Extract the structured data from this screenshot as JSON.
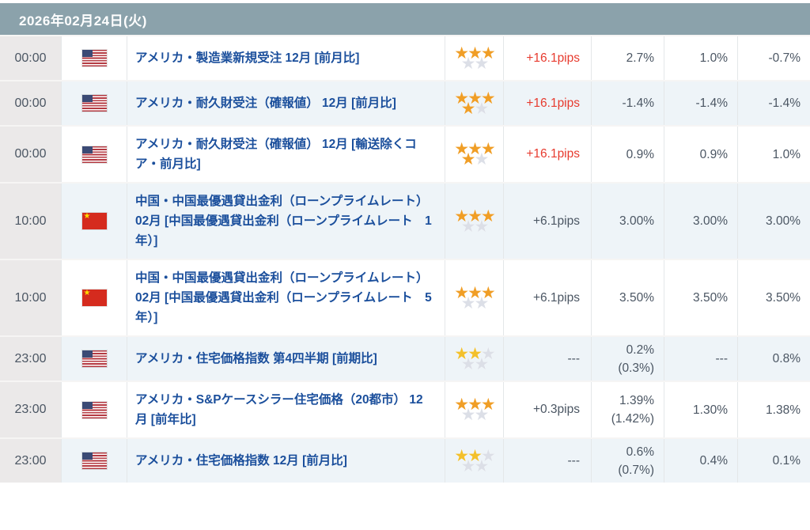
{
  "header": {
    "date_label": "2026年02月24日(火)"
  },
  "colors": {
    "header_bg": "#8ba2ab",
    "event_link": "#1b4f9c",
    "pips_red": "#e73b2f",
    "star_orange": "#f09e26",
    "star_yellow": "#f3c02b",
    "star_gray": "#dcdfe7",
    "row_alt_bg": "#eef4f8",
    "time_col_bg": "#ebe9e9"
  },
  "rows": [
    {
      "time": "00:00",
      "country": "us",
      "country_name": "アメリカ",
      "event": "アメリカ・製造業新規受注 12月 [前月比]",
      "stars": 3,
      "star_color": "orange",
      "pips": "+16.1pips",
      "pips_red": true,
      "values": [
        {
          "main": "2.7%",
          "sub": ""
        },
        {
          "main": "1.0%",
          "sub": ""
        },
        {
          "main": "-0.7%",
          "sub": ""
        }
      ]
    },
    {
      "time": "00:00",
      "country": "us",
      "country_name": "アメリカ",
      "event": "アメリカ・耐久財受注（確報値） 12月 [前月比]",
      "stars": 4,
      "star_color": "orange",
      "pips": "+16.1pips",
      "pips_red": true,
      "values": [
        {
          "main": "-1.4%",
          "sub": ""
        },
        {
          "main": "-1.4%",
          "sub": ""
        },
        {
          "main": "-1.4%",
          "sub": ""
        }
      ]
    },
    {
      "time": "00:00",
      "country": "us",
      "country_name": "アメリカ",
      "event": "アメリカ・耐久財受注（確報値） 12月 [輸送除くコア・前月比]",
      "stars": 4,
      "star_color": "orange",
      "pips": "+16.1pips",
      "pips_red": true,
      "values": [
        {
          "main": "0.9%",
          "sub": ""
        },
        {
          "main": "0.9%",
          "sub": ""
        },
        {
          "main": "1.0%",
          "sub": ""
        }
      ]
    },
    {
      "time": "10:00",
      "country": "cn",
      "country_name": "中国",
      "event": "中国・中国最優遇貸出金利（ローンプライムレート） 02月 [中国最優遇貸出金利（ローンプライムレート　1年）]",
      "stars": 3,
      "star_color": "orange",
      "pips": "+6.1pips",
      "pips_red": false,
      "values": [
        {
          "main": "3.00%",
          "sub": ""
        },
        {
          "main": "3.00%",
          "sub": ""
        },
        {
          "main": "3.00%",
          "sub": ""
        }
      ]
    },
    {
      "time": "10:00",
      "country": "cn",
      "country_name": "中国",
      "event": "中国・中国最優遇貸出金利（ローンプライムレート） 02月 [中国最優遇貸出金利（ローンプライムレート　5年）]",
      "stars": 3,
      "star_color": "orange",
      "pips": "+6.1pips",
      "pips_red": false,
      "values": [
        {
          "main": "3.50%",
          "sub": ""
        },
        {
          "main": "3.50%",
          "sub": ""
        },
        {
          "main": "3.50%",
          "sub": ""
        }
      ]
    },
    {
      "time": "23:00",
      "country": "us",
      "country_name": "アメリカ",
      "event": "アメリカ・住宅価格指数 第4四半期 [前期比]",
      "stars": 2,
      "star_color": "yellow",
      "pips": "---",
      "pips_red": false,
      "values": [
        {
          "main": "0.2%",
          "sub": "(0.3%)"
        },
        {
          "main": "---",
          "sub": ""
        },
        {
          "main": "0.8%",
          "sub": ""
        }
      ]
    },
    {
      "time": "23:00",
      "country": "us",
      "country_name": "アメリカ",
      "event": "アメリカ・S&Pケースシラー住宅価格（20都市） 12月 [前年比]",
      "stars": 3,
      "star_color": "orange",
      "pips": "+0.3pips",
      "pips_red": false,
      "values": [
        {
          "main": "1.39%",
          "sub": "(1.42%)"
        },
        {
          "main": "1.30%",
          "sub": ""
        },
        {
          "main": "1.38%",
          "sub": ""
        }
      ]
    },
    {
      "time": "23:00",
      "country": "us",
      "country_name": "アメリカ",
      "event": "アメリカ・住宅価格指数 12月 [前月比]",
      "stars": 2,
      "star_color": "yellow",
      "pips": "---",
      "pips_red": false,
      "values": [
        {
          "main": "0.6%",
          "sub": "(0.7%)"
        },
        {
          "main": "0.4%",
          "sub": ""
        },
        {
          "main": "0.1%",
          "sub": ""
        }
      ]
    }
  ]
}
